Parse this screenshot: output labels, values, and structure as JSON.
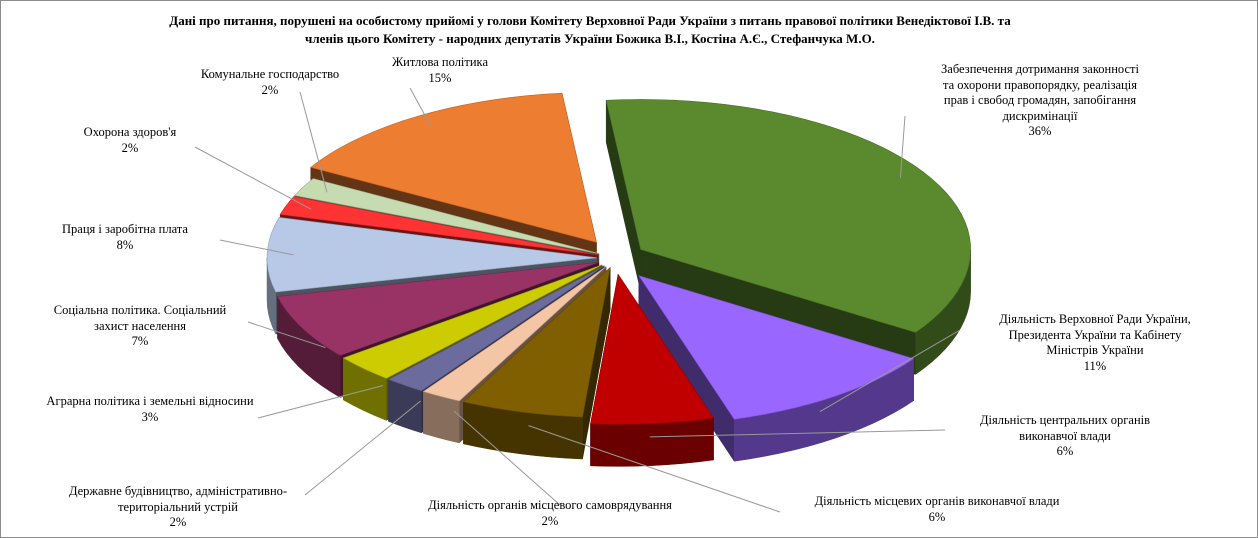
{
  "chart_data": {
    "type": "pie",
    "title_lines": [
      "Дані про питання, порушені на особистому прийомі у голови Комітету Верховної Ради України з питань правової політики Венедіктової І.В. та",
      "членів цього Комітету - народних депутатів України Божика В.І., Костіна А.Є., Стефанчука М.О."
    ],
    "slices": [
      {
        "label_lines": [
          "Забезпечення дотримання законності",
          "та охорони правопорядку, реалізація",
          "прав і свобод громадян, запобігання",
          "дискримінації"
        ],
        "percent_label": "36%",
        "value": 36,
        "color": "#5b8a2e"
      },
      {
        "label_lines": [
          "Діяльність Верховної Ради України,",
          "Президента України та Кабінету",
          "Міністрів України"
        ],
        "percent_label": "11%",
        "value": 11,
        "color": "#9966ff"
      },
      {
        "label_lines": [
          "Діяльність центральних органів",
          "виконавчої влади"
        ],
        "percent_label": "6%",
        "value": 6,
        "color": "#c00000"
      },
      {
        "label_lines": [
          "Діяльність місцевих органів виконавчої влади"
        ],
        "percent_label": "6%",
        "value": 6,
        "color": "#7f5f00"
      },
      {
        "label_lines": [
          "Діяльність органів місцевого самоврядування"
        ],
        "percent_label": "2%",
        "value": 2,
        "color": "#f5c6a5"
      },
      {
        "label_lines": [
          "Державне будівництво, адміністративно-",
          "територіальний устрій"
        ],
        "percent_label": "2%",
        "value": 2,
        "color": "#6b6b9e"
      },
      {
        "label_lines": [
          "Аграрна політика і земельні відносини"
        ],
        "percent_label": "3%",
        "value": 3,
        "color": "#cccc00"
      },
      {
        "label_lines": [
          "Соціальна політика. Соціальний",
          "захист населення"
        ],
        "percent_label": "7%",
        "value": 7,
        "color": "#993366"
      },
      {
        "label_lines": [
          "Праця і заробітна плата"
        ],
        "percent_label": "8%",
        "value": 8,
        "color": "#b7c9e6"
      },
      {
        "label_lines": [
          "Охорона здоров'я"
        ],
        "percent_label": "2%",
        "value": 2,
        "color": "#ff3333"
      },
      {
        "label_lines": [
          "Комунальне господарство"
        ],
        "percent_label": "2%",
        "value": 2,
        "color": "#c6dcb0"
      },
      {
        "label_lines": [
          "Житлова політика"
        ],
        "percent_label": "15%",
        "value": 15,
        "color": "#ed7d31"
      }
    ],
    "style": "3d-exploded-pie",
    "legend": "none"
  }
}
